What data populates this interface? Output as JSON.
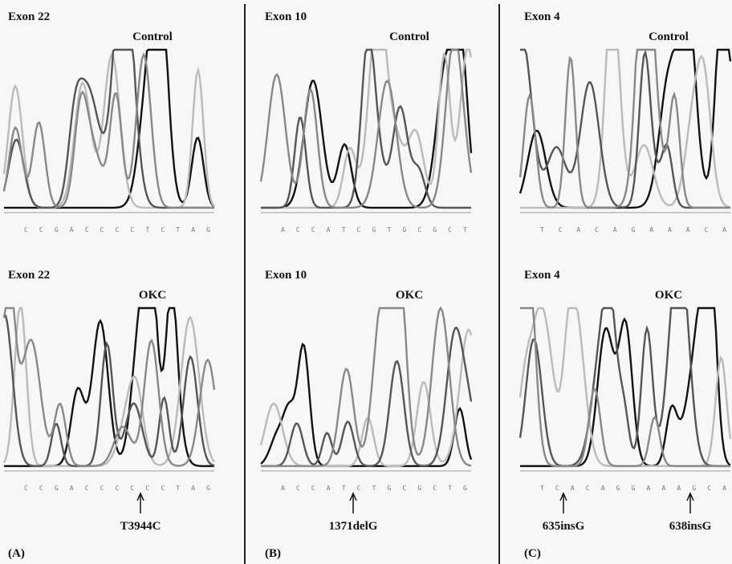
{
  "columns": [
    {
      "label": "(A)",
      "panels": [
        {
          "exon": "Exon 22",
          "sample": "Control",
          "sequence": "C C G A C C C C T C T A G"
        },
        {
          "exon": "Exon 22",
          "sample": "OKC",
          "sequence": "C C G A C C C C C C T A G",
          "mutations": [
            "T3944C"
          ]
        }
      ]
    },
    {
      "label": "(B)",
      "panels": [
        {
          "exon": "Exon 10",
          "sample": "Control",
          "sequence": "A C C A T C G T G C G C T"
        },
        {
          "exon": "Exon 10",
          "sample": "OKC",
          "sequence": "A C C A T C T G C G C T G",
          "mutations": [
            "1371delG"
          ]
        }
      ]
    },
    {
      "label": "(C)",
      "panels": [
        {
          "exon": "Exon 4",
          "sample": "Control",
          "sequence": "T C A C A G A A A C A"
        },
        {
          "exon": "Exon 4",
          "sample": "OKC",
          "sequence": "T C A C A G G A A A G C A",
          "mutations": [
            "635insG",
            "638insG"
          ]
        }
      ]
    }
  ]
}
